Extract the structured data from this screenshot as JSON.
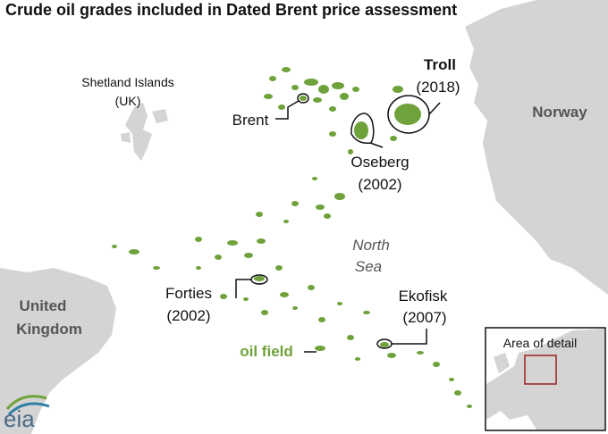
{
  "title": "Crude oil grades included in Dated Brent price assessment",
  "places": [
    {
      "lines": [
        "Shetland Islands",
        "(UK)"
      ]
    },
    {
      "lines": [
        "Norway"
      ]
    },
    {
      "lines": [
        "United",
        "Kingdom"
      ]
    },
    {
      "lines": [
        "North",
        "Sea"
      ]
    }
  ],
  "fields": [
    {
      "lines": [
        "Brent"
      ]
    },
    {
      "lines": [
        "Troll",
        "(2018)"
      ]
    },
    {
      "lines": [
        "Oseberg",
        "(2002)"
      ]
    },
    {
      "lines": [
        "Forties",
        "(2002)"
      ]
    },
    {
      "lines": [
        "Ekofisk",
        "(2007)"
      ]
    }
  ],
  "legend": "oil field",
  "inset": {
    "title": "Area of detail"
  },
  "logo": "eia"
}
